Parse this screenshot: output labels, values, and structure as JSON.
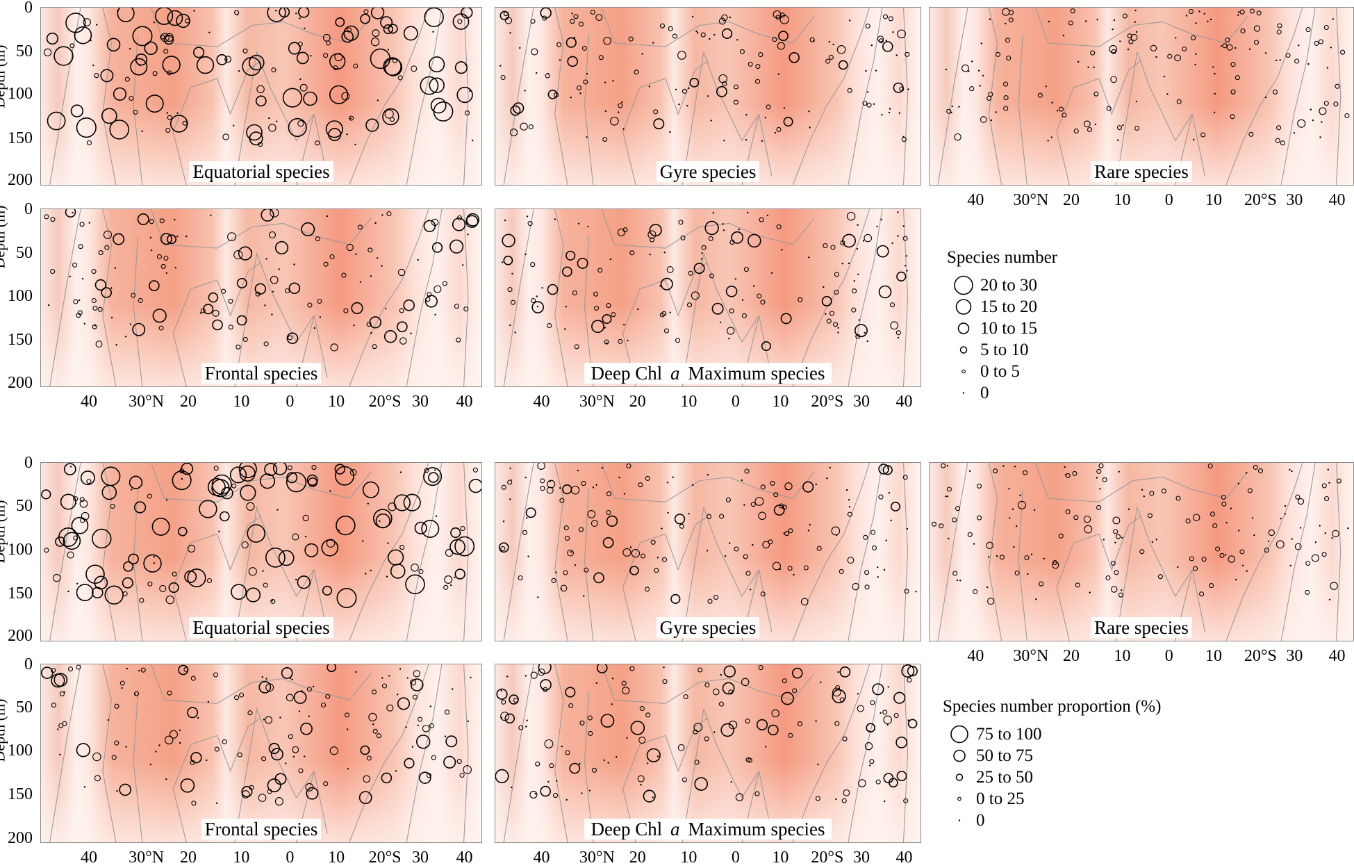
{
  "colors": {
    "low": "#fdeee9",
    "high": "#f4987c",
    "contour": "#9a9a9a",
    "frame": "#8a8a8a",
    "marker": "#000000"
  },
  "axes": {
    "ylabel": "Depth (m)",
    "yticks": [
      "0",
      "50",
      "100",
      "150",
      "200"
    ],
    "xticks": [
      "40",
      "30°N",
      "20",
      "10",
      "0",
      "10",
      "20°S",
      "30",
      "40"
    ]
  },
  "top": {
    "panels": {
      "equatorial": {
        "title": "Equatorial species"
      },
      "gyre": {
        "title": "Gyre species"
      },
      "rare": {
        "title": "Rare species"
      },
      "frontal": {
        "title": "Frontal species"
      },
      "dcm": {
        "title_pre": "Deep Chl ",
        "title_italic": "a",
        "title_post": " Maximum species"
      }
    },
    "legend": {
      "title": "Species number",
      "items": [
        "20  to  30",
        "15  to  20",
        "10  to  15",
        "5  to  10",
        "0 to 5",
        "0"
      ]
    }
  },
  "bottom": {
    "panels": {
      "equatorial": {
        "title": "Equatorial species"
      },
      "gyre": {
        "title": "Gyre species"
      },
      "rare": {
        "title": "Rare species"
      },
      "frontal": {
        "title": "Frontal species"
      },
      "dcm": {
        "title_pre": "Deep Chl ",
        "title_italic": "a",
        "title_post": " Maximum species"
      }
    },
    "legend": {
      "title": "Species number proportion  (%)",
      "items": [
        "75  to  100",
        "50  to  75",
        "25  to  50",
        "0 to 25",
        "0"
      ]
    }
  },
  "chart_data": [
    {
      "type": "scatter",
      "figure": "species number",
      "title": "Equatorial species",
      "xlabel": "",
      "ylabel": "Depth (m)",
      "x": [
        "40",
        "30°N",
        "20",
        "10",
        "0",
        "10",
        "20°S",
        "30",
        "40"
      ],
      "ylim": [
        200,
        0
      ],
      "size_classes": [
        "20  to  30",
        "15  to  20",
        "10  to  15",
        "5  to  10",
        "0 to 5",
        "0"
      ]
    },
    {
      "type": "scatter",
      "figure": "species number",
      "title": "Gyre species",
      "ylabel": "Depth (m)",
      "ylim": [
        200,
        0
      ]
    },
    {
      "type": "scatter",
      "figure": "species number",
      "title": "Rare species",
      "ylabel": "Depth (m)",
      "ylim": [
        200,
        0
      ]
    },
    {
      "type": "scatter",
      "figure": "species number",
      "title": "Frontal species",
      "ylabel": "Depth (m)",
      "ylim": [
        200,
        0
      ]
    },
    {
      "type": "scatter",
      "figure": "species number",
      "title": "Deep Chl a Maximum species",
      "ylabel": "Depth (m)",
      "ylim": [
        200,
        0
      ]
    },
    {
      "type": "scatter",
      "figure": "species number proportion",
      "title": "Equatorial species",
      "ylabel": "Depth (m)",
      "ylim": [
        200,
        0
      ],
      "size_classes": [
        "75  to  100",
        "50  to  75",
        "25  to  50",
        "0 to 25",
        "0"
      ]
    },
    {
      "type": "scatter",
      "figure": "species number proportion",
      "title": "Gyre species",
      "ylabel": "Depth (m)",
      "ylim": [
        200,
        0
      ]
    },
    {
      "type": "scatter",
      "figure": "species number proportion",
      "title": "Rare species",
      "ylabel": "Depth (m)",
      "ylim": [
        200,
        0
      ]
    },
    {
      "type": "scatter",
      "figure": "species number proportion",
      "title": "Frontal species",
      "ylabel": "Depth (m)",
      "ylim": [
        200,
        0
      ]
    },
    {
      "type": "scatter",
      "figure": "species number proportion",
      "title": "Deep Chl a Maximum species",
      "ylabel": "Depth (m)",
      "ylim": [
        200,
        0
      ]
    }
  ]
}
